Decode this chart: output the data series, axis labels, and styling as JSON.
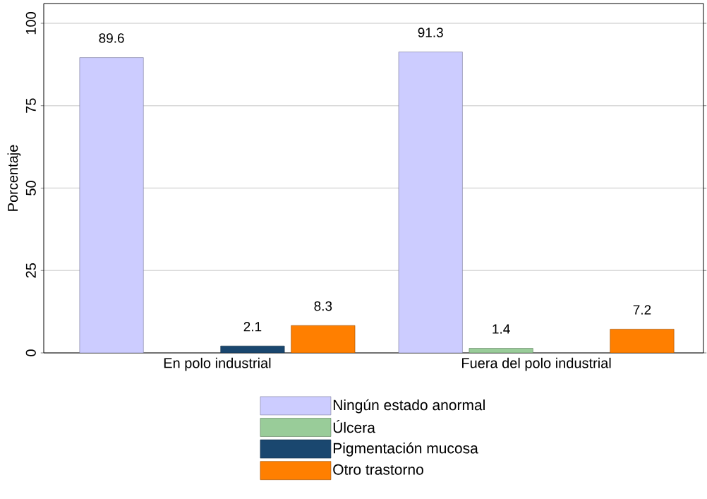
{
  "chart_data": {
    "type": "bar",
    "ylabel": "Porcentaje",
    "categories": [
      "En polo industrial",
      "Fuera del polo industrial"
    ],
    "series": [
      {
        "name": "Ningún  estado anormal",
        "color": "#ccccff",
        "values": [
          89.6,
          91.3
        ]
      },
      {
        "name": "Úlcera",
        "color": "#99cc99",
        "values": [
          null,
          1.4
        ]
      },
      {
        "name": "Pigmentación mucosa",
        "color": "#1a476f",
        "values": [
          2.1,
          null
        ]
      },
      {
        "name": "Otro trastorno",
        "color": "#ff7f00",
        "values": [
          8.3,
          7.2
        ]
      }
    ],
    "ylim": [
      0,
      106
    ],
    "yticks": [
      0,
      25,
      50,
      75,
      100
    ],
    "grid": "y",
    "legend": "bottom",
    "data_labels": true
  }
}
